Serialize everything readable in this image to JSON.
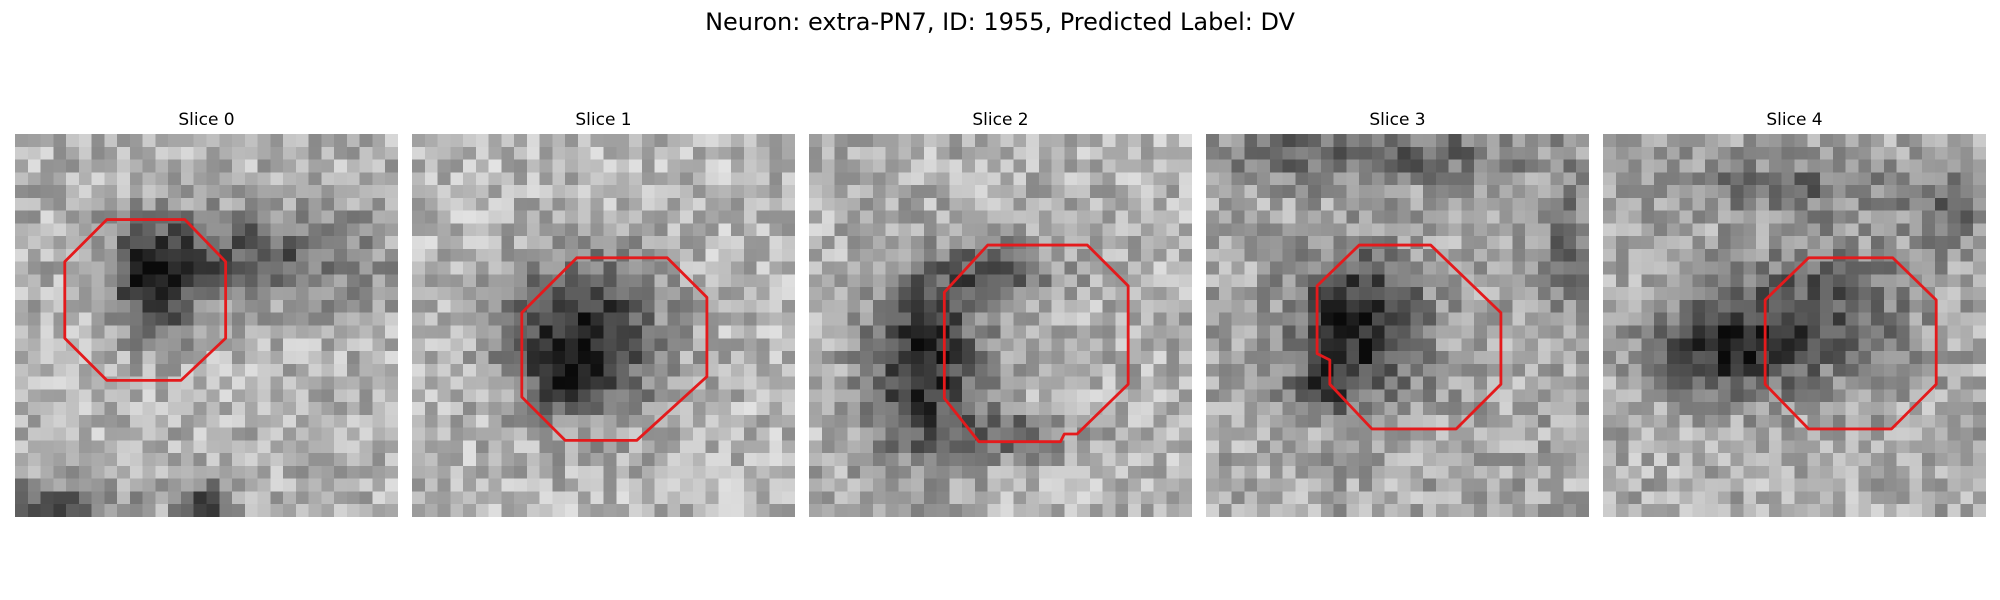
{
  "figure": {
    "title": "Neuron: extra-PN7, ID: 1955, Predicted Label: DV",
    "contour_color": "#e41a1c"
  },
  "panels": [
    {
      "title": "Slice 0",
      "image": "grayscale-em-patch"
    },
    {
      "title": "Slice 1",
      "image": "grayscale-em-patch"
    },
    {
      "title": "Slice 2",
      "image": "grayscale-em-patch"
    },
    {
      "title": "Slice 3",
      "image": "grayscale-em-patch"
    },
    {
      "title": "Slice 4",
      "image": "grayscale-em-patch"
    }
  ]
}
